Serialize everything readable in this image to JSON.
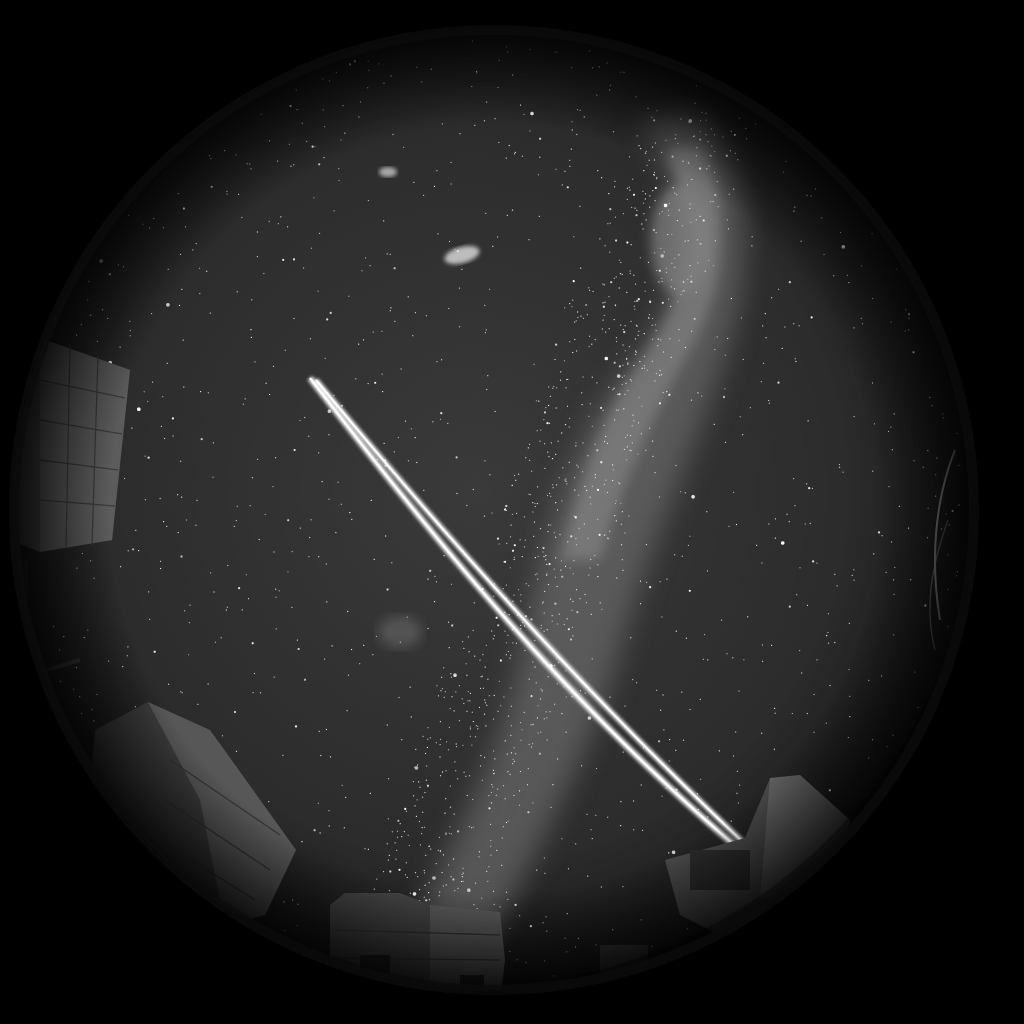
{
  "image": {
    "kind": "fisheye all-sky night photograph",
    "colors": {
      "frame": "#000000",
      "sky_center": "#3a3a3a",
      "sky_edge": "#141414",
      "milky_way": "#8a8a8a",
      "laser": "#ffffff",
      "building": "#5a5a5a",
      "building_dark": "#2a2a2a"
    },
    "objects": [
      "milky-way",
      "large-magellanic-cloud",
      "small-magellanic-cloud",
      "laser-guide-star-beams",
      "telescope-enclosures",
      "star-field"
    ]
  }
}
